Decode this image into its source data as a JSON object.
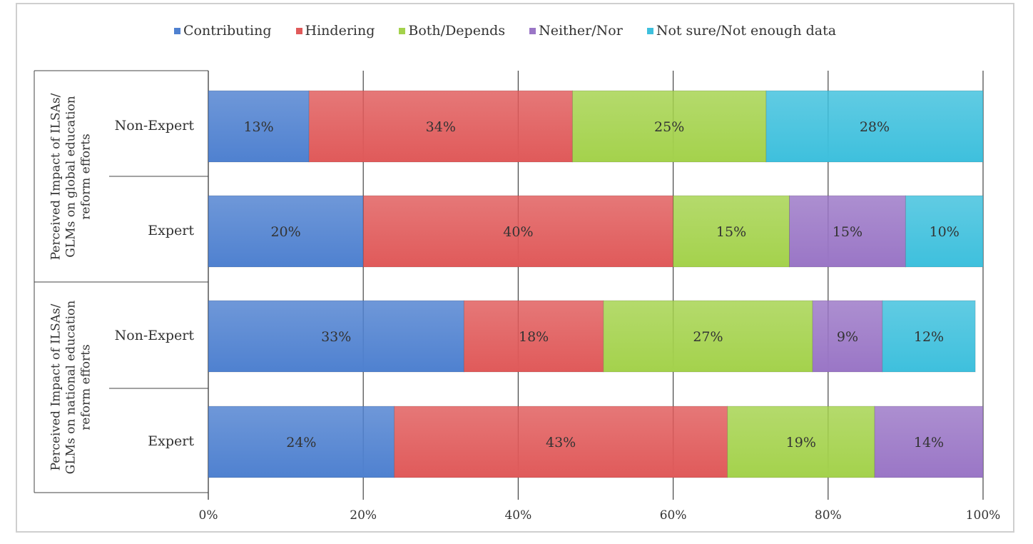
{
  "chart_data": {
    "type": "bar",
    "orientation": "horizontal",
    "stacked": true,
    "legend": {
      "position": "top",
      "entries": [
        {
          "name": "Contributing",
          "color": "#4f81d0"
        },
        {
          "name": "Hindering",
          "color": "#e05a5a"
        },
        {
          "name": "Both/Depends",
          "color": "#a4d24c"
        },
        {
          "name": "Neither/Nor",
          "color": "#9a76c6"
        },
        {
          "name": "Not sure/Not enough data",
          "color": "#3ec0dd"
        }
      ]
    },
    "groups": [
      {
        "label_lines": [
          "Perceived Impact of ILSAs/",
          "GLMs on global education",
          "reform efforts"
        ],
        "rows": [
          {
            "label": "Non-Expert",
            "values": [
              13,
              34,
              25,
              0,
              28
            ],
            "labels": [
              "13%",
              "34%",
              "25%",
              "",
              "28%"
            ]
          },
          {
            "label": "Expert",
            "values": [
              20,
              40,
              15,
              15,
              10
            ],
            "labels": [
              "20%",
              "40%",
              "15%",
              "15%",
              "10%"
            ]
          }
        ]
      },
      {
        "label_lines": [
          "Perceived Impact of ILSAs/",
          "GLMs on national education",
          "reform efforts"
        ],
        "rows": [
          {
            "label": "Non-Expert",
            "values": [
              33,
              18,
              27,
              9,
              12
            ],
            "labels": [
              "33%",
              "18%",
              "27%",
              "9%",
              "12%"
            ]
          },
          {
            "label": "Expert",
            "values": [
              24,
              43,
              19,
              14,
              0
            ],
            "labels": [
              "24%",
              "43%",
              "19%",
              "14%",
              ""
            ]
          }
        ]
      }
    ],
    "xaxis": {
      "ticks": [
        0,
        20,
        40,
        60,
        80,
        100
      ],
      "tick_labels": [
        "0%",
        "20%",
        "40%",
        "60%",
        "80%",
        "100%"
      ],
      "xlim": [
        0,
        100
      ]
    },
    "grid": true,
    "title": "",
    "xlabel": "",
    "ylabel": ""
  }
}
